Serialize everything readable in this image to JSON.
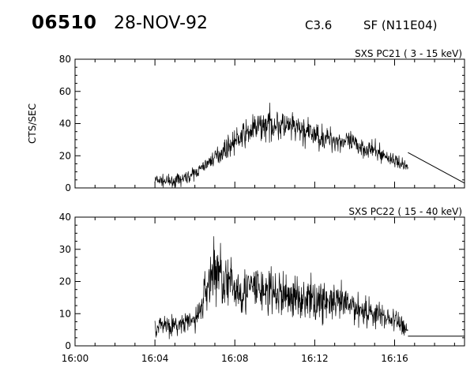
{
  "header": {
    "id": "06510",
    "date": "28-NOV-92",
    "flare_class": "C3.6",
    "event": "SF (N11E04)"
  },
  "chart_data": [
    {
      "type": "line",
      "title": "SXS PC21  (  3 - 15 keV)",
      "ylabel": "CTS/SEC",
      "xlabel": "",
      "xlim": [
        "16:00",
        "16:19:30"
      ],
      "ylim": [
        0,
        80
      ],
      "yticks": [
        0,
        20,
        40,
        60,
        80
      ],
      "xticks": [
        "16:00",
        "16:04",
        "16:08",
        "16:12",
        "16:16"
      ],
      "grid": false,
      "series": [
        {
          "x": [
            "16:04:00",
            "16:04:30",
            "16:05:00",
            "16:05:30",
            "16:06:00",
            "16:06:30",
            "16:07:00",
            "16:07:30",
            "16:08:00",
            "16:08:30",
            "16:09:00",
            "16:09:30",
            "16:10:00",
            "16:10:30",
            "16:11:00",
            "16:11:30",
            "16:12:00",
            "16:12:30",
            "16:13:00",
            "16:13:30",
            "16:14:00",
            "16:14:30",
            "16:15:00",
            "16:15:30",
            "16:16:00",
            "16:16:30",
            "16:16:40"
          ],
          "y": [
            5,
            4,
            4,
            6,
            9,
            14,
            19,
            24,
            29,
            33,
            37,
            39,
            40,
            38,
            37,
            35,
            33,
            31,
            30,
            29,
            27,
            25,
            23,
            20,
            17,
            14,
            13
          ]
        },
        {
          "x": [
            "16:16:40",
            "16:19:30"
          ],
          "y": [
            22,
            3
          ]
        }
      ]
    },
    {
      "type": "line",
      "title": "SXS PC22  ( 15 - 40 keV)",
      "ylabel": "",
      "xlabel": "",
      "xlim": [
        "16:00",
        "16:19:30"
      ],
      "ylim": [
        0,
        40
      ],
      "yticks": [
        0,
        10,
        20,
        30,
        40
      ],
      "xticks": [
        "16:00",
        "16:04",
        "16:08",
        "16:12",
        "16:16"
      ],
      "grid": false,
      "series": [
        {
          "x": [
            "16:04:00",
            "16:04:30",
            "16:05:00",
            "16:05:30",
            "16:06:00",
            "16:06:20",
            "16:06:40",
            "16:07:00",
            "16:07:20",
            "16:07:40",
            "16:08:00",
            "16:08:30",
            "16:09:00",
            "16:09:30",
            "16:10:00",
            "16:10:30",
            "16:11:00",
            "16:11:30",
            "16:12:00",
            "16:12:30",
            "16:13:00",
            "16:13:30",
            "16:14:00",
            "16:14:30",
            "16:15:00",
            "16:15:30",
            "16:16:00",
            "16:16:30",
            "16:16:40"
          ],
          "y": [
            6,
            7,
            6,
            7,
            8,
            12,
            20,
            24,
            22,
            19,
            18,
            17,
            18,
            17,
            16,
            16,
            15,
            15,
            14,
            14,
            13,
            13,
            12,
            11,
            10,
            9,
            8,
            6,
            5
          ]
        },
        {
          "x": [
            "16:16:40",
            "16:19:30"
          ],
          "y": [
            3,
            3
          ]
        }
      ]
    }
  ]
}
